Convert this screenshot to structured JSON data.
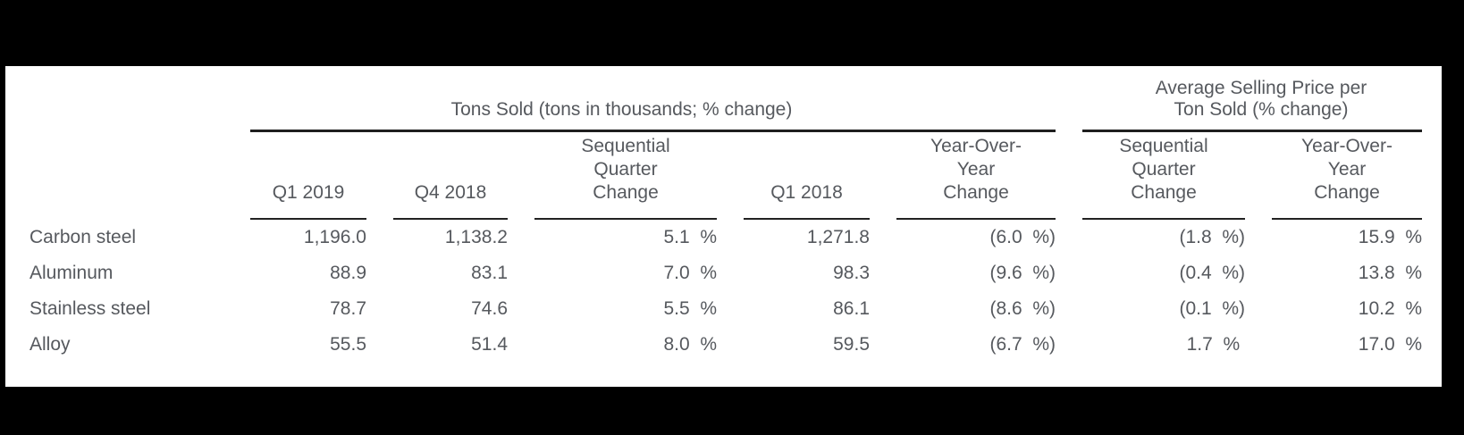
{
  "page": {
    "canvas_background": "#000000",
    "sheet_background": "#ffffff",
    "text_color": "#56595e",
    "rule_color": "#1f1f1f"
  },
  "table": {
    "groups": {
      "tons": {
        "title": "Tons Sold (tons in thousands; % change)"
      },
      "asp": {
        "title": "Average Selling Price per\nTon Sold (% change)"
      }
    },
    "columns": [
      "Q1 2019",
      "Q4 2018",
      "Sequential\nQuarter\nChange",
      "Q1 2018",
      "Year-Over-\nYear\nChange",
      "Sequential\nQuarter\nChange",
      "Year-Over-\nYear\nChange"
    ],
    "rows": [
      {
        "label": "Carbon steel",
        "values": [
          "1,196.0",
          "1,138.2",
          "5.1  %",
          "1,271.8",
          "(6.0  %)",
          "(1.8  %)",
          "15.9  %"
        ]
      },
      {
        "label": "Aluminum",
        "values": [
          "88.9",
          "83.1",
          "7.0  %",
          "98.3",
          "(9.6  %)",
          "(0.4  %)",
          "13.8  %"
        ]
      },
      {
        "label": "Stainless steel",
        "values": [
          "78.7",
          "74.6",
          "5.5  %",
          "86.1",
          "(8.6  %)",
          "(0.1  %)",
          "10.2  %"
        ]
      },
      {
        "label": "Alloy",
        "values": [
          "55.5",
          "51.4",
          "8.0  %",
          "59.5",
          "(6.7  %)",
          "1.7  % ",
          "17.0  %"
        ]
      }
    ]
  },
  "chart_data": {
    "type": "table",
    "title": "",
    "column_groups": [
      {
        "title": "Tons Sold (tons in thousands; % change)",
        "columns": [
          "Q1 2019",
          "Q4 2018",
          "Sequential Quarter Change",
          "Q1 2018",
          "Year-Over-Year Change"
        ]
      },
      {
        "title": "Average Selling Price per Ton Sold (% change)",
        "columns": [
          "Sequential Quarter Change",
          "Year-Over-Year Change"
        ]
      }
    ],
    "rows": [
      {
        "category": "Carbon steel",
        "tons_sold": {
          "q1_2019": 1196.0,
          "q4_2018": 1138.2,
          "sequential_quarter_change_pct": 5.1,
          "q1_2018": 1271.8,
          "year_over_year_change_pct": -6.0
        },
        "avg_selling_price": {
          "sequential_quarter_change_pct": -1.8,
          "year_over_year_change_pct": 15.9
        }
      },
      {
        "category": "Aluminum",
        "tons_sold": {
          "q1_2019": 88.9,
          "q4_2018": 83.1,
          "sequential_quarter_change_pct": 7.0,
          "q1_2018": 98.3,
          "year_over_year_change_pct": -9.6
        },
        "avg_selling_price": {
          "sequential_quarter_change_pct": -0.4,
          "year_over_year_change_pct": 13.8
        }
      },
      {
        "category": "Stainless steel",
        "tons_sold": {
          "q1_2019": 78.7,
          "q4_2018": 74.6,
          "sequential_quarter_change_pct": 5.5,
          "q1_2018": 86.1,
          "year_over_year_change_pct": -8.6
        },
        "avg_selling_price": {
          "sequential_quarter_change_pct": -0.1,
          "year_over_year_change_pct": 10.2
        }
      },
      {
        "category": "Alloy",
        "tons_sold": {
          "q1_2019": 55.5,
          "q4_2018": 51.4,
          "sequential_quarter_change_pct": 8.0,
          "q1_2018": 59.5,
          "year_over_year_change_pct": -6.7
        },
        "avg_selling_price": {
          "sequential_quarter_change_pct": 1.7,
          "year_over_year_change_pct": 17.0
        }
      }
    ],
    "notes": "Negative percentages are shown in parentheses in the source table"
  }
}
